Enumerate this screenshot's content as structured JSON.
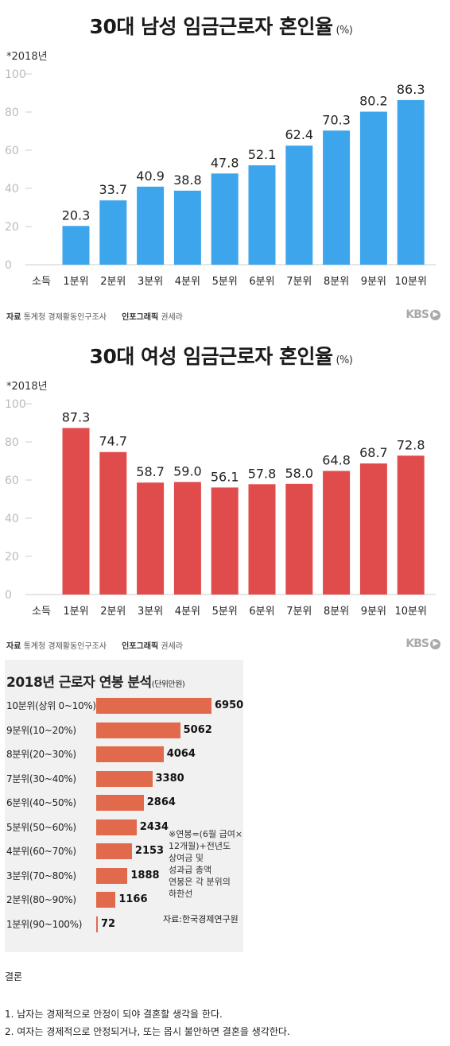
{
  "charts": [
    {
      "title": "30대 남성 임금근로자 혼인율",
      "unit": "(%)",
      "year_note": "*2018년",
      "bar_color": "#3da5ec",
      "source_label": "자료",
      "source": "통계청 경제활동인구조사",
      "credit_label": "인포그래픽",
      "credit": "권세라",
      "logo": "KBS"
    },
    {
      "title": "30대 여성 임금근로자 혼인율",
      "unit": "(%)",
      "year_note": "*2018년",
      "bar_color": "#e04b4b",
      "source_label": "자료",
      "source": "통계청 경제활동인구조사",
      "credit_label": "인포그래픽",
      "credit": "권세라",
      "logo": "KBS"
    }
  ],
  "chart_data": [
    {
      "type": "bar",
      "title": "30대 남성 임금근로자 혼인율",
      "xlabel": "소득",
      "categories": [
        "1분위",
        "2분위",
        "3분위",
        "4분위",
        "5분위",
        "6분위",
        "7분위",
        "8분위",
        "9분위",
        "10분위"
      ],
      "values": [
        20.3,
        33.7,
        40.9,
        38.8,
        47.8,
        52.1,
        62.4,
        70.3,
        80.2,
        86.3
      ],
      "value_labels": [
        "20.3",
        "33.7",
        "40.9",
        "38.8",
        "47.8",
        "52.1",
        "62.4",
        "70.3",
        "80.2",
        "86.3"
      ],
      "yticks": [
        0,
        20,
        40,
        60,
        80,
        100
      ],
      "ylim": [
        0,
        100
      ],
      "grid": false
    },
    {
      "type": "bar",
      "title": "30대 여성 임금근로자 혼인율",
      "xlabel": "소득",
      "categories": [
        "1분위",
        "2분위",
        "3분위",
        "4분위",
        "5분위",
        "6분위",
        "7분위",
        "8분위",
        "9분위",
        "10분위"
      ],
      "values": [
        87.3,
        74.7,
        58.7,
        59.0,
        56.1,
        57.8,
        58.0,
        64.8,
        68.7,
        72.8
      ],
      "value_labels": [
        "87.3",
        "74.7",
        "58.7",
        "59.0",
        "56.1",
        "57.8",
        "58.0",
        "64.8",
        "68.7",
        "72.8"
      ],
      "yticks": [
        0,
        20,
        40,
        60,
        80,
        100
      ],
      "ylim": [
        0,
        100
      ],
      "grid": false
    },
    {
      "type": "bar",
      "orientation": "horizontal",
      "title": "2018년 근로자 연봉 분석",
      "unit": "(단위만원)",
      "categories": [
        "10분위(상위 0~10%)",
        "9분위(10~20%)",
        "8분위(20~30%)",
        "7분위(30~40%)",
        "6분위(40~50%)",
        "5분위(50~60%)",
        "4분위(60~70%)",
        "3분위(70~80%)",
        "2분위(80~90%)",
        "1분위(90~100%)"
      ],
      "values": [
        6950,
        5062,
        4064,
        3380,
        2864,
        2434,
        2153,
        1888,
        1166,
        72
      ],
      "value_labels": [
        "6950",
        "5062",
        "4064",
        "3380",
        "2864",
        "2434",
        "2153",
        "1888",
        "1166",
        "72"
      ],
      "bar_color": "#e06a4b"
    }
  ],
  "salary": {
    "title": "2018년 근로자 연봉 분석",
    "unit": "(단위만원)",
    "note_lines": [
      "※연봉=(6월 급여×",
      "12개월)+전년도",
      "상여금 및",
      "성과급 총액",
      "연봉은 각 분위의",
      "하한선"
    ],
    "source": "자료:한국경제연구원"
  },
  "conclusion": {
    "heading": "결론",
    "items": [
      "1. 남자는 경제적으로 안정이 되야 결혼할 생각을 한다.",
      "2. 여자는 경제적으로 안정되거나, 또는 몹시 불안하면 결혼을 생각한다."
    ]
  }
}
